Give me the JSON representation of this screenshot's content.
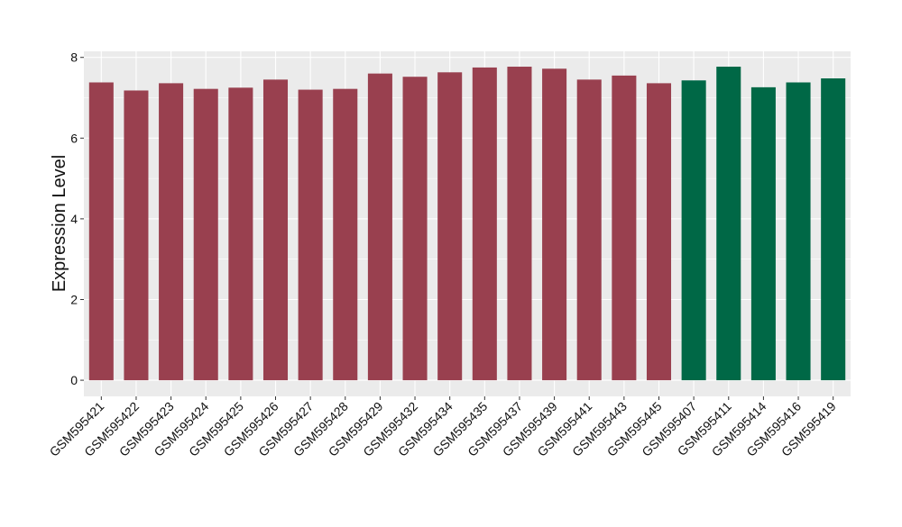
{
  "chart_data": {
    "type": "bar",
    "title": "",
    "xlabel": "",
    "ylabel": "Expression Level",
    "ylim": [
      -0.4,
      8.15
    ],
    "yticks": [
      0,
      2,
      4,
      6,
      8
    ],
    "grid": true,
    "legend": "none",
    "categories": [
      "GSM595421",
      "GSM595422",
      "GSM595423",
      "GSM595424",
      "GSM595425",
      "GSM595426",
      "GSM595427",
      "GSM595428",
      "GSM595429",
      "GSM595432",
      "GSM595434",
      "GSM595435",
      "GSM595437",
      "GSM595439",
      "GSM595441",
      "GSM595443",
      "GSM595445",
      "GSM595407",
      "GSM595411",
      "GSM595414",
      "GSM595416",
      "GSM595419"
    ],
    "values": [
      7.38,
      7.18,
      7.36,
      7.22,
      7.25,
      7.45,
      7.2,
      7.22,
      7.6,
      7.52,
      7.63,
      7.75,
      7.77,
      7.72,
      7.45,
      7.55,
      7.36,
      7.43,
      7.77,
      7.26,
      7.38,
      7.48
    ],
    "groups": [
      "a",
      "a",
      "a",
      "a",
      "a",
      "a",
      "a",
      "a",
      "a",
      "a",
      "a",
      "a",
      "a",
      "a",
      "a",
      "a",
      "a",
      "b",
      "b",
      "b",
      "b",
      "b"
    ],
    "group_colors": {
      "a": "#99404f",
      "b": "#006846"
    },
    "panel_background": "#ebebeb",
    "grid_color": "#ffffff"
  }
}
